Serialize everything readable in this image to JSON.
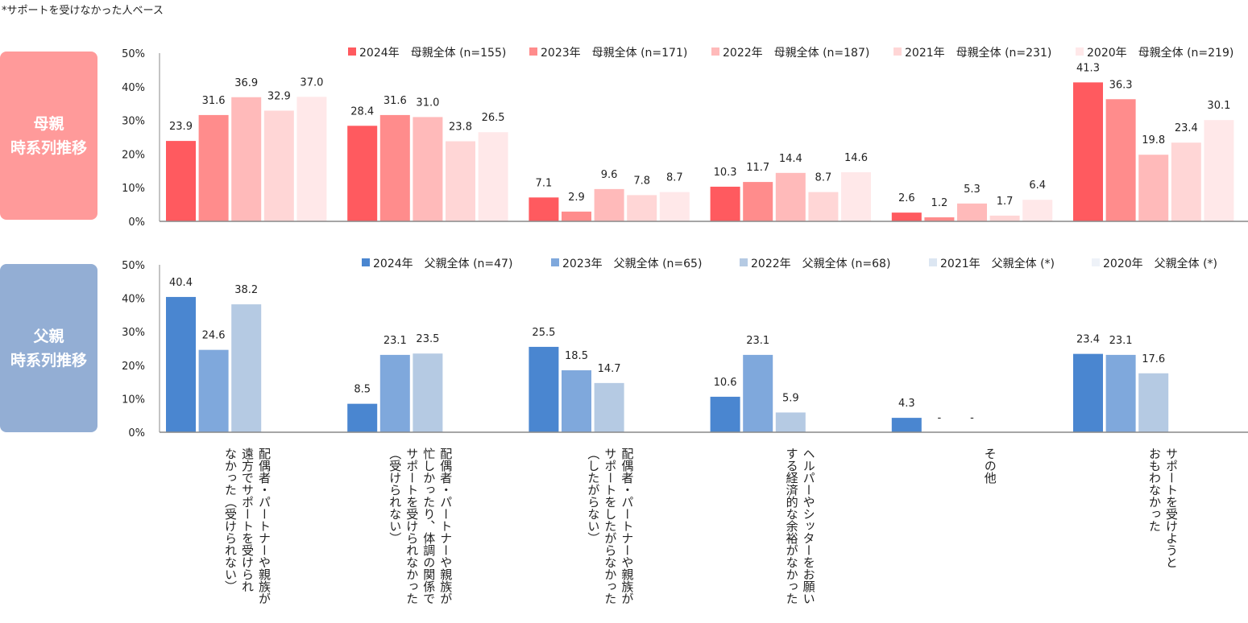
{
  "note": "*サポートを受けなかった人ベース",
  "badges": {
    "mother": {
      "line1": "母親",
      "line2": "時系列推移",
      "color": "#FF9A9A"
    },
    "father": {
      "line1": "父親",
      "line2": "時系列推移",
      "color": "#93AED4"
    }
  },
  "chart_data": [
    {
      "type": "bar",
      "ylim": [
        0,
        50
      ],
      "yticks": [
        "0%",
        "10%",
        "20%",
        "30%",
        "40%",
        "50%"
      ],
      "legend": "top",
      "grid": false,
      "categories": [
        "配偶者・パートナーや親族が\n遠方でサポートを受けられ\nなかった（受けられない）",
        "配偶者・パートナーや親族が\n忙しかったり、体調の関係で\nサポートを受けられなかった\n（受けられない）",
        "配偶者・パートナーや親族が\nサポートをしたがらなかった\n（したがらない）",
        "ヘルパーやシッターをお願い\nする経済的な余裕がなかった",
        "その他",
        "サポートを受けようと\nおもわなかった"
      ],
      "series": [
        {
          "name": "2024年　母親全体 (n=155)",
          "color": "#FF5A5F",
          "values": [
            23.9,
            28.4,
            7.1,
            10.3,
            2.6,
            41.3
          ]
        },
        {
          "name": "2023年　母親全体 (n=171)",
          "color": "#FF8C8C",
          "values": [
            31.6,
            31.6,
            2.9,
            11.7,
            1.2,
            36.3
          ]
        },
        {
          "name": "2022年　母親全体 (n=187)",
          "color": "#FFBABA",
          "values": [
            36.9,
            31.0,
            9.6,
            14.4,
            5.3,
            19.8
          ]
        },
        {
          "name": "2021年　母親全体 (n=231)",
          "color": "#FFD6D6",
          "values": [
            32.9,
            23.8,
            7.8,
            8.7,
            1.7,
            23.4
          ]
        },
        {
          "name": "2020年　母親全体 (n=219)",
          "color": "#FFE8E9",
          "values": [
            37.0,
            26.5,
            8.7,
            14.6,
            6.4,
            30.1
          ]
        }
      ]
    },
    {
      "type": "bar",
      "ylim": [
        0,
        50
      ],
      "yticks": [
        "0%",
        "10%",
        "20%",
        "30%",
        "40%",
        "50%"
      ],
      "legend": "top",
      "grid": false,
      "series": [
        {
          "name": "2024年　父親全体 (n=47)",
          "color": "#4A86D0",
          "values": [
            40.4,
            8.5,
            25.5,
            10.6,
            4.3,
            23.4
          ]
        },
        {
          "name": "2023年　父親全体 (n=65)",
          "color": "#7FA8DC",
          "values": [
            24.6,
            23.1,
            18.5,
            23.1,
            "-",
            23.1
          ]
        },
        {
          "name": "2022年　父親全体 (n=68)",
          "color": "#B5CAE3",
          "values": [
            38.2,
            23.5,
            14.7,
            5.9,
            "-",
            17.6
          ]
        },
        {
          "name": "2021年　父親全体 (*)",
          "color": "#DCE6F2",
          "values": [
            null,
            null,
            null,
            null,
            null,
            null
          ]
        },
        {
          "name": "2020年　父親全体 (*)",
          "color": "#EEF2F8",
          "values": [
            null,
            null,
            null,
            null,
            null,
            null
          ]
        }
      ]
    }
  ]
}
